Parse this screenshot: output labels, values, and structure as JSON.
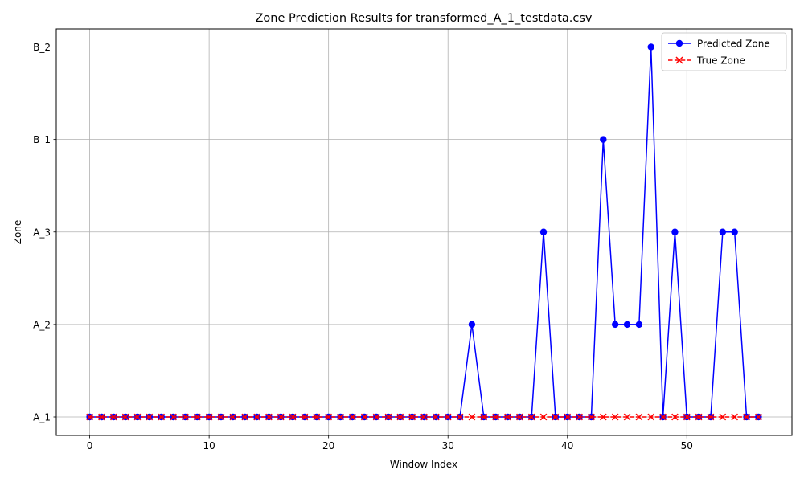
{
  "chart_data": {
    "type": "line",
    "title": "Zone Prediction Results for transformed_A_1_testdata.csv",
    "xlabel": "Window Index",
    "ylabel": "Zone",
    "xlim": [
      -2.8,
      58.8
    ],
    "x_ticks": [
      0,
      10,
      20,
      30,
      40,
      50
    ],
    "y_categories": [
      "A_1",
      "A_2",
      "A_3",
      "B_1",
      "B_2"
    ],
    "grid": true,
    "legend_position": "top-right",
    "x": [
      0,
      1,
      2,
      3,
      4,
      5,
      6,
      7,
      8,
      9,
      10,
      11,
      12,
      13,
      14,
      15,
      16,
      17,
      18,
      19,
      20,
      21,
      22,
      23,
      24,
      25,
      26,
      27,
      28,
      29,
      30,
      31,
      32,
      33,
      34,
      35,
      36,
      37,
      38,
      39,
      40,
      41,
      42,
      43,
      44,
      45,
      46,
      47,
      48,
      49,
      50,
      51,
      52,
      53,
      54,
      55,
      56
    ],
    "series": [
      {
        "name": "Predicted Zone",
        "color": "#0000ff",
        "marker": "circle",
        "line_style": "solid",
        "values": [
          "A_1",
          "A_1",
          "A_1",
          "A_1",
          "A_1",
          "A_1",
          "A_1",
          "A_1",
          "A_1",
          "A_1",
          "A_1",
          "A_1",
          "A_1",
          "A_1",
          "A_1",
          "A_1",
          "A_1",
          "A_1",
          "A_1",
          "A_1",
          "A_1",
          "A_1",
          "A_1",
          "A_1",
          "A_1",
          "A_1",
          "A_1",
          "A_1",
          "A_1",
          "A_1",
          "A_1",
          "A_1",
          "A_2",
          "A_1",
          "A_1",
          "A_1",
          "A_1",
          "A_1",
          "A_3",
          "A_1",
          "A_1",
          "A_1",
          "A_1",
          "B_1",
          "A_2",
          "A_2",
          "A_2",
          "B_2",
          "A_1",
          "A_3",
          "A_1",
          "A_1",
          "A_1",
          "A_3",
          "A_3",
          "A_1",
          "A_1"
        ]
      },
      {
        "name": "True Zone",
        "color": "#ff0000",
        "marker": "x",
        "line_style": "dashed",
        "values": [
          "A_1",
          "A_1",
          "A_1",
          "A_1",
          "A_1",
          "A_1",
          "A_1",
          "A_1",
          "A_1",
          "A_1",
          "A_1",
          "A_1",
          "A_1",
          "A_1",
          "A_1",
          "A_1",
          "A_1",
          "A_1",
          "A_1",
          "A_1",
          "A_1",
          "A_1",
          "A_1",
          "A_1",
          "A_1",
          "A_1",
          "A_1",
          "A_1",
          "A_1",
          "A_1",
          "A_1",
          "A_1",
          "A_1",
          "A_1",
          "A_1",
          "A_1",
          "A_1",
          "A_1",
          "A_1",
          "A_1",
          "A_1",
          "A_1",
          "A_1",
          "A_1",
          "A_1",
          "A_1",
          "A_1",
          "A_1",
          "A_1",
          "A_1",
          "A_1",
          "A_1",
          "A_1",
          "A_1",
          "A_1",
          "A_1",
          "A_1"
        ]
      }
    ]
  }
}
